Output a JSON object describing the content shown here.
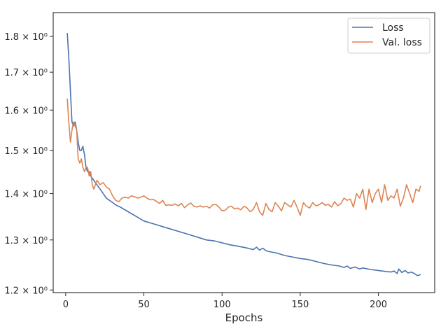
{
  "chart_data": {
    "type": "line",
    "title": "",
    "xlabel": "Epochs",
    "ylabel": "",
    "xlim": [
      -8,
      236
    ],
    "ylim": [
      1.195,
      1.87
    ],
    "yscale": "log",
    "grid": false,
    "legend": "top-right",
    "xticks": [
      0,
      50,
      100,
      150,
      200
    ],
    "yticks": [
      {
        "value": 1.2,
        "label": "1.2 × 10⁰"
      },
      {
        "value": 1.3,
        "label": "1.3 × 10⁰"
      },
      {
        "value": 1.4,
        "label": "1.4 × 10⁰"
      },
      {
        "value": 1.5,
        "label": "1.5 × 10⁰"
      },
      {
        "value": 1.6,
        "label": "1.6 × 10⁰"
      },
      {
        "value": 1.7,
        "label": "1.7 × 10⁰"
      },
      {
        "value": 1.8,
        "label": "1.8 × 10⁰"
      }
    ],
    "series": [
      {
        "name": "Loss",
        "color": "#4c72b0",
        "points": [
          [
            1,
            1.81
          ],
          [
            2,
            1.74
          ],
          [
            3,
            1.65
          ],
          [
            4,
            1.57
          ],
          [
            5,
            1.56
          ],
          [
            6,
            1.57
          ],
          [
            7,
            1.55
          ],
          [
            8,
            1.52
          ],
          [
            9,
            1.5
          ],
          [
            10,
            1.5
          ],
          [
            11,
            1.51
          ],
          [
            12,
            1.49
          ],
          [
            13,
            1.46
          ],
          [
            14,
            1.45
          ],
          [
            15,
            1.45
          ],
          [
            16,
            1.44
          ],
          [
            18,
            1.43
          ],
          [
            20,
            1.42
          ],
          [
            22,
            1.41
          ],
          [
            24,
            1.4
          ],
          [
            26,
            1.39
          ],
          [
            28,
            1.385
          ],
          [
            30,
            1.38
          ],
          [
            32,
            1.375
          ],
          [
            35,
            1.37
          ],
          [
            40,
            1.36
          ],
          [
            45,
            1.35
          ],
          [
            50,
            1.34
          ],
          [
            55,
            1.335
          ],
          [
            60,
            1.33
          ],
          [
            65,
            1.325
          ],
          [
            70,
            1.32
          ],
          [
            75,
            1.315
          ],
          [
            80,
            1.31
          ],
          [
            85,
            1.305
          ],
          [
            90,
            1.3
          ],
          [
            95,
            1.298
          ],
          [
            100,
            1.294
          ],
          [
            105,
            1.29
          ],
          [
            110,
            1.287
          ],
          [
            115,
            1.284
          ],
          [
            120,
            1.28
          ],
          [
            122,
            1.285
          ],
          [
            124,
            1.279
          ],
          [
            126,
            1.283
          ],
          [
            128,
            1.278
          ],
          [
            130,
            1.276
          ],
          [
            135,
            1.273
          ],
          [
            140,
            1.268
          ],
          [
            145,
            1.265
          ],
          [
            150,
            1.262
          ],
          [
            155,
            1.26
          ],
          [
            160,
            1.256
          ],
          [
            165,
            1.252
          ],
          [
            170,
            1.249
          ],
          [
            175,
            1.247
          ],
          [
            178,
            1.244
          ],
          [
            180,
            1.247
          ],
          [
            182,
            1.242
          ],
          [
            185,
            1.245
          ],
          [
            188,
            1.241
          ],
          [
            190,
            1.243
          ],
          [
            195,
            1.24
          ],
          [
            200,
            1.238
          ],
          [
            205,
            1.236
          ],
          [
            208,
            1.235
          ],
          [
            210,
            1.237
          ],
          [
            212,
            1.232
          ],
          [
            213,
            1.241
          ],
          [
            215,
            1.234
          ],
          [
            217,
            1.238
          ],
          [
            219,
            1.233
          ],
          [
            221,
            1.235
          ],
          [
            223,
            1.232
          ],
          [
            225,
            1.228
          ],
          [
            227,
            1.23
          ]
        ]
      },
      {
        "name": "Val. loss",
        "color": "#dd8452",
        "points": [
          [
            1,
            1.63
          ],
          [
            2,
            1.57
          ],
          [
            3,
            1.52
          ],
          [
            4,
            1.55
          ],
          [
            5,
            1.57
          ],
          [
            6,
            1.56
          ],
          [
            7,
            1.55
          ],
          [
            8,
            1.48
          ],
          [
            9,
            1.47
          ],
          [
            10,
            1.48
          ],
          [
            11,
            1.46
          ],
          [
            12,
            1.45
          ],
          [
            13,
            1.46
          ],
          [
            14,
            1.46
          ],
          [
            15,
            1.44
          ],
          [
            16,
            1.45
          ],
          [
            17,
            1.42
          ],
          [
            18,
            1.41
          ],
          [
            19,
            1.42
          ],
          [
            20,
            1.43
          ],
          [
            22,
            1.42
          ],
          [
            24,
            1.425
          ],
          [
            26,
            1.415
          ],
          [
            28,
            1.41
          ],
          [
            30,
            1.395
          ],
          [
            32,
            1.385
          ],
          [
            34,
            1.382
          ],
          [
            36,
            1.39
          ],
          [
            38,
            1.392
          ],
          [
            40,
            1.39
          ],
          [
            42,
            1.395
          ],
          [
            44,
            1.393
          ],
          [
            46,
            1.39
          ],
          [
            48,
            1.392
          ],
          [
            50,
            1.395
          ],
          [
            52,
            1.39
          ],
          [
            54,
            1.386
          ],
          [
            56,
            1.387
          ],
          [
            58,
            1.383
          ],
          [
            60,
            1.378
          ],
          [
            62,
            1.385
          ],
          [
            64,
            1.374
          ],
          [
            66,
            1.375
          ],
          [
            68,
            1.374
          ],
          [
            70,
            1.377
          ],
          [
            72,
            1.373
          ],
          [
            74,
            1.378
          ],
          [
            76,
            1.369
          ],
          [
            78,
            1.375
          ],
          [
            80,
            1.379
          ],
          [
            82,
            1.372
          ],
          [
            84,
            1.37
          ],
          [
            86,
            1.373
          ],
          [
            88,
            1.37
          ],
          [
            90,
            1.372
          ],
          [
            92,
            1.368
          ],
          [
            94,
            1.375
          ],
          [
            96,
            1.376
          ],
          [
            98,
            1.37
          ],
          [
            100,
            1.362
          ],
          [
            102,
            1.363
          ],
          [
            104,
            1.37
          ],
          [
            106,
            1.372
          ],
          [
            108,
            1.366
          ],
          [
            110,
            1.368
          ],
          [
            112,
            1.364
          ],
          [
            114,
            1.372
          ],
          [
            116,
            1.368
          ],
          [
            118,
            1.36
          ],
          [
            120,
            1.365
          ],
          [
            122,
            1.38
          ],
          [
            124,
            1.36
          ],
          [
            126,
            1.352
          ],
          [
            128,
            1.378
          ],
          [
            130,
            1.365
          ],
          [
            132,
            1.36
          ],
          [
            134,
            1.38
          ],
          [
            136,
            1.372
          ],
          [
            138,
            1.362
          ],
          [
            140,
            1.38
          ],
          [
            142,
            1.375
          ],
          [
            144,
            1.37
          ],
          [
            146,
            1.385
          ],
          [
            148,
            1.37
          ],
          [
            150,
            1.352
          ],
          [
            152,
            1.38
          ],
          [
            154,
            1.372
          ],
          [
            156,
            1.368
          ],
          [
            158,
            1.38
          ],
          [
            160,
            1.373
          ],
          [
            162,
            1.375
          ],
          [
            164,
            1.38
          ],
          [
            166,
            1.374
          ],
          [
            168,
            1.376
          ],
          [
            170,
            1.37
          ],
          [
            172,
            1.382
          ],
          [
            174,
            1.373
          ],
          [
            176,
            1.378
          ],
          [
            178,
            1.39
          ],
          [
            180,
            1.385
          ],
          [
            182,
            1.388
          ],
          [
            184,
            1.37
          ],
          [
            186,
            1.4
          ],
          [
            188,
            1.39
          ],
          [
            190,
            1.41
          ],
          [
            192,
            1.365
          ],
          [
            194,
            1.41
          ],
          [
            196,
            1.38
          ],
          [
            198,
            1.4
          ],
          [
            200,
            1.41
          ],
          [
            202,
            1.38
          ],
          [
            204,
            1.42
          ],
          [
            206,
            1.385
          ],
          [
            208,
            1.395
          ],
          [
            210,
            1.39
          ],
          [
            212,
            1.41
          ],
          [
            214,
            1.372
          ],
          [
            216,
            1.39
          ],
          [
            218,
            1.42
          ],
          [
            220,
            1.4
          ],
          [
            222,
            1.38
          ],
          [
            224,
            1.41
          ],
          [
            226,
            1.405
          ],
          [
            227,
            1.418
          ]
        ]
      }
    ]
  }
}
